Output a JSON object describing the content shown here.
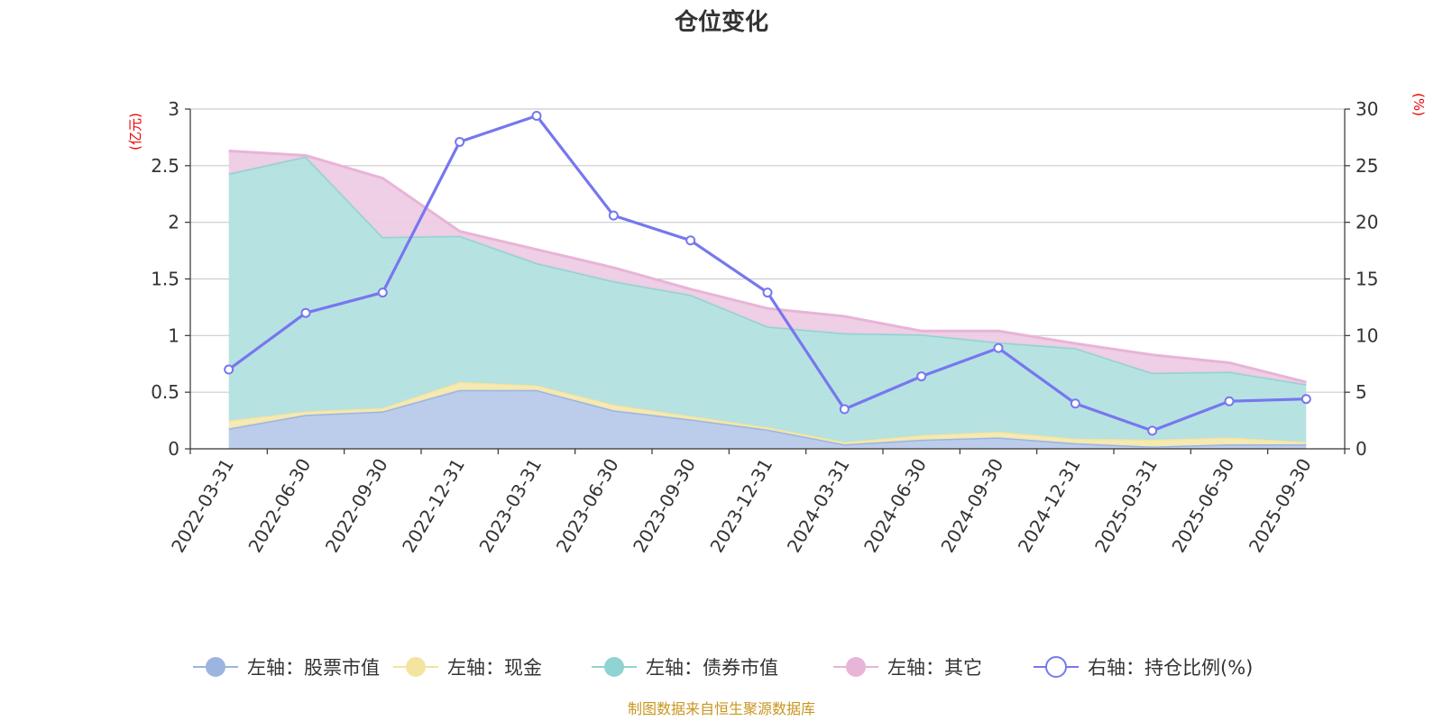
{
  "chart_data": {
    "type": "area",
    "title": "仓位变化",
    "source": "制图数据来自恒生聚源数据库",
    "left_axis": {
      "unit": "(亿元)",
      "ylim": [
        0,
        3
      ],
      "ticks": [
        0,
        0.5,
        1,
        1.5,
        2,
        2.5,
        3
      ],
      "tick_labels": [
        "0",
        "0.5",
        "1",
        "1.5",
        "2",
        "2.5",
        "3"
      ]
    },
    "right_axis": {
      "unit": "(%)",
      "ylim": [
        0,
        30
      ],
      "ticks": [
        0,
        5,
        10,
        15,
        20,
        25,
        30
      ],
      "tick_labels": [
        "0",
        "5",
        "10",
        "15",
        "20",
        "25",
        "30"
      ]
    },
    "categories": [
      "2022-03-31",
      "2022-06-30",
      "2022-09-30",
      "2022-12-31",
      "2023-03-31",
      "2023-06-30",
      "2023-09-30",
      "2023-12-31",
      "2024-03-31",
      "2024-06-30",
      "2024-09-30",
      "2024-12-31",
      "2025-03-31",
      "2025-06-30",
      "2025-09-30"
    ],
    "stacked_series": [
      {
        "name": "左轴：股票市值",
        "color": "#9bb5e0",
        "fill": "#b8c9ea",
        "values": [
          0.18,
          0.3,
          0.33,
          0.52,
          0.52,
          0.34,
          0.26,
          0.17,
          0.04,
          0.08,
          0.1,
          0.05,
          0.02,
          0.04,
          0.04
        ]
      },
      {
        "name": "左轴：现金",
        "color": "#f5e4a0",
        "fill": "#f6e9b0",
        "values": [
          0.07,
          0.03,
          0.03,
          0.07,
          0.04,
          0.05,
          0.03,
          0.02,
          0.02,
          0.04,
          0.05,
          0.04,
          0.06,
          0.06,
          0.02
        ]
      },
      {
        "name": "左轴：债券市值",
        "color": "#8fd3d3",
        "fill": "#b3e0e0",
        "values": [
          2.18,
          2.25,
          1.51,
          1.29,
          1.08,
          1.09,
          1.07,
          0.89,
          0.96,
          0.89,
          0.79,
          0.8,
          0.59,
          0.58,
          0.51
        ]
      },
      {
        "name": "左轴：其它",
        "color": "#e8b4d8",
        "fill": "#eecce4",
        "values": [
          0.2,
          0.01,
          0.52,
          0.04,
          0.12,
          0.12,
          0.05,
          0.16,
          0.15,
          0.03,
          0.1,
          0.04,
          0.16,
          0.08,
          0.02
        ]
      }
    ],
    "line_series": {
      "name": "右轴：持仓比例(%)",
      "color": "#7777ee",
      "values": [
        7.0,
        12.0,
        13.8,
        27.1,
        29.4,
        20.6,
        18.4,
        13.8,
        3.5,
        6.4,
        8.9,
        4.0,
        1.6,
        4.2,
        4.4
      ]
    }
  }
}
